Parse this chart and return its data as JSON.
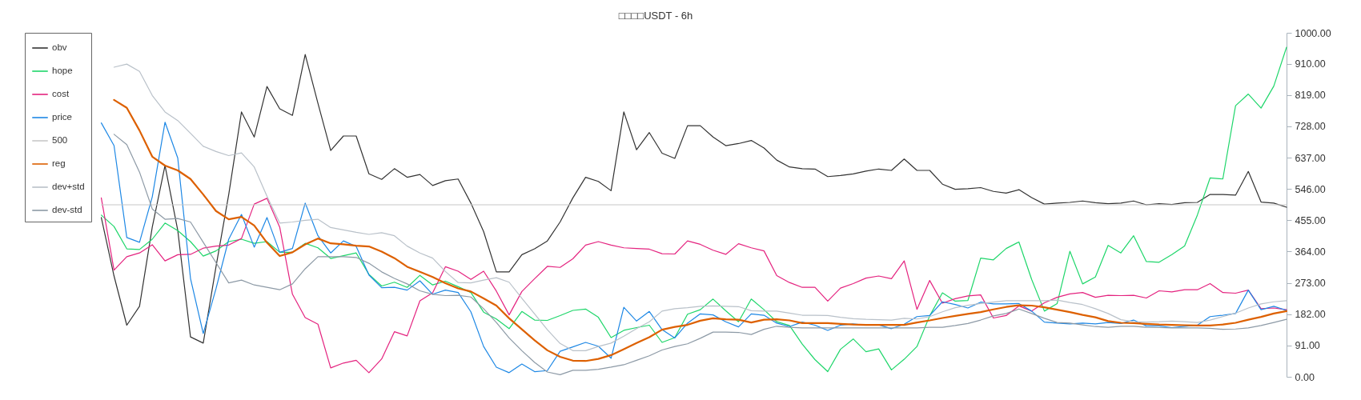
{
  "chart_data": {
    "type": "line",
    "title": "□□□□USDT - 6h",
    "categories": [
      null,
      null,
      null,
      null,
      null,
      null,
      null,
      null,
      null,
      null,
      null,
      null,
      null,
      null,
      null,
      null,
      null,
      null,
      null,
      null,
      null,
      null,
      null,
      null,
      null,
      null,
      null,
      null,
      null,
      null,
      null,
      null,
      null,
      null,
      null,
      null,
      null,
      null,
      null,
      null,
      null,
      null,
      null,
      null,
      null,
      null,
      null,
      null,
      null,
      null,
      null,
      null,
      null,
      null,
      null,
      null,
      null,
      null,
      null,
      null,
      null,
      null,
      null,
      null,
      null,
      null,
      null,
      null,
      null,
      null,
      null,
      null,
      null,
      null,
      null,
      null,
      null,
      null,
      null,
      null,
      null,
      null,
      null,
      null,
      null,
      null,
      null,
      null,
      null,
      null,
      null,
      null,
      null,
      null,
      null,
      null,
      null,
      null,
      null,
      null
    ],
    "series": [
      {
        "name": "obv",
        "color": "#333333",
        "values": [
          null,
          null,
          null,
          null,
          null,
          null,
          463,
          293,
          150,
          205,
          435,
          614,
          426,
          116,
          98,
          320,
          530,
          770,
          697,
          844,
          779,
          760,
          937,
          795,
          658,
          700,
          700,
          590,
          574,
          605,
          580,
          588,
          556,
          570,
          575,
          505,
          422,
          305,
          305,
          355,
          372,
          395,
          450,
          520,
          580,
          568,
          541,
          770,
          660,
          710,
          650,
          635,
          730,
          730,
          697,
          672,
          678,
          687,
          665,
          630,
          610,
          605,
          604,
          582,
          585,
          590,
          598,
          604,
          600,
          633,
          600,
          600,
          560,
          545,
          547,
          550,
          539,
          534,
          544,
          521,
          502,
          505,
          507,
          511,
          506,
          503,
          505,
          511,
          500,
          503,
          501,
          506,
          507,
          530,
          530,
          528,
          597,
          508,
          505,
          493
        ]
      },
      {
        "name": "hope",
        "color": "#1ed66a",
        "values": [
          null,
          null,
          null,
          null,
          null,
          null,
          470,
          437,
          372,
          370,
          400,
          447,
          425,
          393,
          351,
          366,
          393,
          400,
          388,
          393,
          362,
          362,
          388,
          375,
          344,
          352,
          360,
          298,
          264,
          275,
          260,
          295,
          267,
          278,
          262,
          245,
          188,
          168,
          140,
          190,
          165,
          164,
          178,
          193,
          197,
          173,
          114,
          135,
          143,
          150,
          100,
          114,
          182,
          195,
          226,
          192,
          160,
          226,
          195,
          160,
          149,
          95,
          50,
          15,
          80,
          110,
          73,
          81,
          20,
          51,
          88,
          177,
          244,
          220,
          222,
          345,
          340,
          373,
          392,
          283,
          191,
          213,
          365,
          270,
          290,
          382,
          360,
          410,
          335,
          333,
          355,
          380,
          470,
          578,
          575,
          788,
          822,
          781,
          845,
          958
        ]
      },
      {
        "name": "cost",
        "color": "#e4237f",
        "values": [
          null,
          null,
          null,
          null,
          null,
          null,
          520,
          310,
          349,
          360,
          384,
          337,
          355,
          356,
          374,
          380,
          383,
          402,
          502,
          519,
          435,
          240,
          172,
          153,
          26,
          40,
          48,
          12,
          52,
          131,
          119,
          221,
          244,
          320,
          307,
          283,
          307,
          249,
          180,
          248,
          285,
          321,
          318,
          343,
          383,
          393,
          383,
          375,
          373,
          371,
          358,
          357,
          395,
          385,
          368,
          356,
          387,
          375,
          366,
          294,
          274,
          260,
          260,
          220,
          258,
          271,
          287,
          293,
          285,
          337,
          196,
          280,
          214,
          227,
          235,
          238,
          171,
          178,
          206,
          191,
          215,
          231,
          241,
          245,
          231,
          237,
          236,
          237,
          229,
          250,
          247,
          253,
          253,
          271,
          245,
          243,
          252,
          198,
          200,
          195
        ]
      },
      {
        "name": "price",
        "color": "#1e88e5",
        "values": [
          null,
          null,
          null,
          null,
          null,
          null,
          738,
          672,
          405,
          391,
          523,
          740,
          636,
          286,
          126,
          256,
          400,
          472,
          377,
          463,
          362,
          373,
          505,
          410,
          360,
          395,
          379,
          296,
          259,
          260,
          252,
          279,
          240,
          252,
          245,
          189,
          88,
          28,
          12,
          37,
          15,
          18,
          74,
          87,
          100,
          89,
          54,
          202,
          162,
          190,
          137,
          113,
          156,
          183,
          180,
          160,
          145,
          183,
          179,
          156,
          146,
          159,
          150,
          135,
          150,
          154,
          150,
          151,
          140,
          153,
          175,
          178,
          218,
          210,
          200,
          217,
          212,
          212,
          213,
          191,
          159,
          156,
          154,
          156,
          154,
          158,
          155,
          165,
          148,
          148,
          143,
          147,
          150,
          175,
          179,
          184,
          252,
          195,
          205,
          193
        ]
      },
      {
        "name": "500",
        "color": "#c8c8c8",
        "values": [
          null,
          null,
          null,
          null,
          null,
          null,
          500,
          500,
          500,
          500,
          500,
          500,
          500,
          500,
          500,
          500,
          500,
          500,
          500,
          500,
          500,
          500,
          500,
          500,
          500,
          500,
          500,
          500,
          500,
          500,
          500,
          500,
          500,
          500,
          500,
          500,
          500,
          500,
          500,
          500,
          500,
          500,
          500,
          500,
          500,
          500,
          500,
          500,
          500,
          500,
          500,
          500,
          500,
          500,
          500,
          500,
          500,
          500,
          500,
          500,
          500,
          500,
          500,
          500,
          500,
          500,
          500,
          500,
          500,
          500,
          500,
          500,
          500,
          500,
          500,
          500,
          500,
          500,
          500,
          500,
          500,
          500,
          500,
          500,
          500,
          500,
          500,
          500,
          500,
          500,
          500,
          500,
          500,
          500,
          500,
          500,
          500,
          500,
          500,
          500
        ]
      },
      {
        "name": "reg",
        "color": "#dd6000",
        "values": [
          null,
          null,
          null,
          null,
          null,
          null,
          null,
          805,
          782,
          716,
          640,
          614,
          600,
          575,
          530,
          482,
          458,
          465,
          440,
          390,
          351,
          362,
          385,
          402,
          388,
          385,
          381,
          379,
          364,
          345,
          320,
          305,
          290,
          272,
          257,
          248,
          228,
          207,
          170,
          138,
          106,
          77,
          58,
          47,
          46,
          52,
          63,
          80,
          98,
          115,
          137,
          145,
          151,
          163,
          170,
          167,
          166,
          158,
          166,
          167,
          164,
          156,
          156,
          156,
          154,
          152,
          151,
          151,
          151,
          151,
          158,
          164,
          171,
          177,
          183,
          188,
          196,
          203,
          208,
          207,
          202,
          195,
          188,
          180,
          173,
          162,
          157,
          156,
          154,
          152,
          151,
          150,
          149,
          149,
          152,
          157,
          166,
          174,
          184,
          191
        ]
      },
      {
        "name": "dev+std",
        "color": "#b9c1c9",
        "values": [
          null,
          null,
          null,
          null,
          null,
          null,
          null,
          900,
          909,
          888,
          818,
          770,
          745,
          708,
          670,
          655,
          643,
          651,
          610,
          525,
          447,
          450,
          455,
          458,
          434,
          427,
          420,
          414,
          419,
          410,
          380,
          360,
          345,
          306,
          274,
          273,
          281,
          288,
          275,
          228,
          183,
          137,
          97,
          76,
          76,
          88,
          98,
          118,
          140,
          160,
          191,
          198,
          201,
          205,
          206,
          205,
          204,
          192,
          191,
          191,
          185,
          179,
          179,
          178,
          173,
          169,
          167,
          166,
          165,
          170,
          168,
          175,
          189,
          201,
          208,
          213,
          217,
          221,
          221,
          221,
          221,
          223,
          216,
          210,
          198,
          184,
          166,
          160,
          159,
          160,
          162,
          160,
          158,
          165,
          175,
          185,
          200,
          212,
          218,
          221
        ]
      },
      {
        "name": "dev-std",
        "color": "#8d9aa6",
        "values": [
          null,
          null,
          null,
          null,
          null,
          null,
          null,
          705,
          675,
          595,
          488,
          458,
          460,
          450,
          391,
          332,
          273,
          281,
          267,
          260,
          253,
          270,
          314,
          349,
          349,
          349,
          347,
          330,
          305,
          286,
          270,
          250,
          240,
          236,
          237,
          232,
          198,
          158,
          113,
          76,
          42,
          14,
          6,
          19,
          19,
          22,
          28,
          35,
          48,
          61,
          78,
          88,
          96,
          112,
          130,
          130,
          129,
          123,
          138,
          147,
          144,
          142,
          142,
          142,
          142,
          142,
          142,
          142,
          142,
          142,
          142,
          144,
          144,
          149,
          155,
          165,
          177,
          184,
          197,
          184,
          170,
          158,
          156,
          151,
          146,
          144,
          147,
          147,
          144,
          143,
          142,
          142,
          142,
          141,
          138,
          139,
          142,
          149,
          158,
          167
        ]
      }
    ],
    "ylim": [
      0,
      1000
    ],
    "yticks": [
      {
        "value": 0,
        "label": "0.00"
      },
      {
        "value": 91,
        "label": "91.00"
      },
      {
        "value": 182,
        "label": "182.00"
      },
      {
        "value": 273,
        "label": "273.00"
      },
      {
        "value": 364,
        "label": "364.00"
      },
      {
        "value": 455,
        "label": "455.00"
      },
      {
        "value": 546,
        "label": "546.00"
      },
      {
        "value": 637,
        "label": "637.00"
      },
      {
        "value": 728,
        "label": "728.00"
      },
      {
        "value": 819,
        "label": "819.00"
      },
      {
        "value": 910,
        "label": "910.00"
      },
      {
        "value": 1000,
        "label": "1000.00"
      }
    ],
    "legend": "top left",
    "tick_labels": "y"
  }
}
